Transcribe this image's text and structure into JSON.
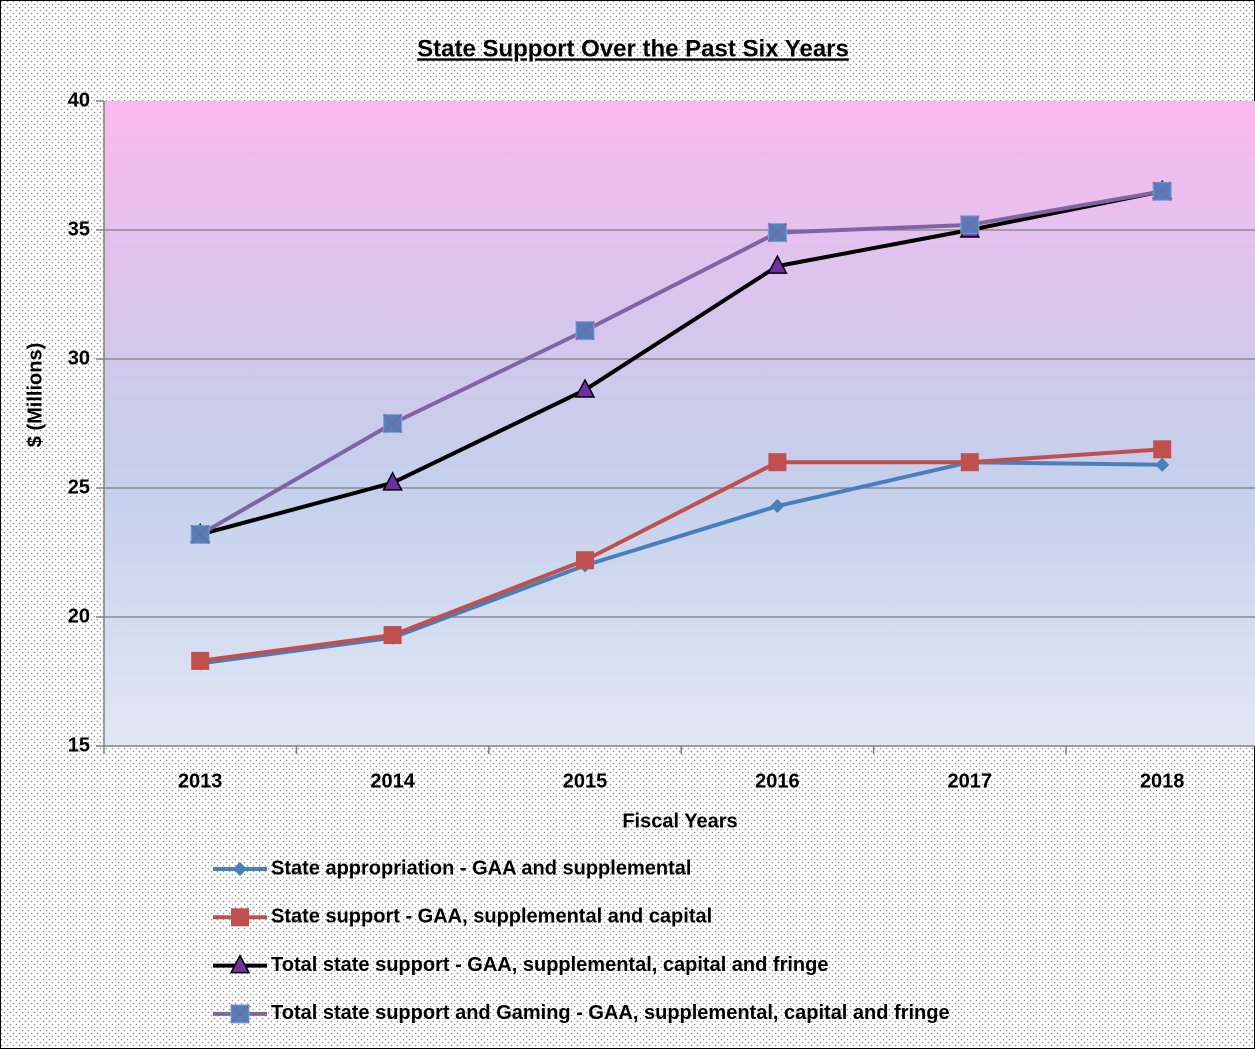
{
  "chart_data": {
    "type": "line",
    "title": "State Support Over the Past Six Years",
    "xlabel": "Fiscal Years",
    "ylabel": "$ (Millions)",
    "categories": [
      "2013",
      "2014",
      "2015",
      "2016",
      "2017",
      "2018"
    ],
    "ylim": [
      15,
      40
    ],
    "yticks": [
      15,
      20,
      25,
      30,
      35,
      40
    ],
    "grid": true,
    "series": [
      {
        "name": "State appropriation - GAA and supplemental",
        "color": "#4a7ebb",
        "marker": "diamond",
        "marker_color": "#4a7ebb",
        "values": [
          18.2,
          19.2,
          22.0,
          24.3,
          26.0,
          25.9
        ]
      },
      {
        "name": "State support - GAA, supplemental and capital",
        "color": "#c0504d",
        "marker": "square",
        "marker_color": "#c0504d",
        "values": [
          18.3,
          19.3,
          22.2,
          26.0,
          26.0,
          26.5
        ]
      },
      {
        "name": "Total state support - GAA, supplemental, capital and fringe",
        "color": "#000000",
        "marker": "triangle",
        "marker_color": "#7030a0",
        "values": [
          23.2,
          25.2,
          28.8,
          33.6,
          35.0,
          36.5
        ]
      },
      {
        "name": "Total state support and Gaming - GAA, supplemental, capital and fringe",
        "color": "#8064a2",
        "marker": "x-square",
        "marker_color": "#4f81bd",
        "values": [
          23.2,
          27.5,
          31.1,
          34.9,
          35.2,
          36.5
        ]
      }
    ]
  }
}
